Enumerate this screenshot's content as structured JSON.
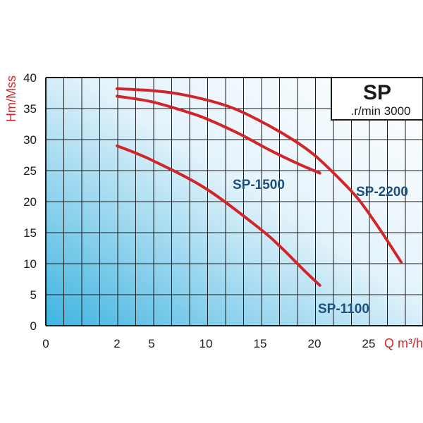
{
  "chart_data": {
    "type": "line",
    "title": "SP",
    "subtitle": ".r/min 3000",
    "xlabel": "Q m³/h",
    "ylabel": "Hm/Mss",
    "xlim": [
      0,
      28
    ],
    "ylim": [
      0,
      40
    ],
    "x_ticks": [
      "0",
      "2",
      "5",
      "10",
      "15",
      "20",
      "25"
    ],
    "y_ticks": [
      "0",
      "5",
      "10",
      "15",
      "20",
      "25",
      "30",
      "35",
      "40"
    ],
    "grid": true,
    "colors": {
      "curve": "#d0262a",
      "series_label": "#1b4f7e",
      "axis_title": "#d0262a",
      "grid": "#1a1a1a",
      "gradient_start": "#3fb4e0",
      "gradient_end": "#ffffff"
    },
    "series": [
      {
        "name": "SP-1100",
        "x": [
          2,
          5,
          10,
          15,
          17,
          19,
          20.5
        ],
        "y": [
          29,
          26.7,
          22.1,
          15.6,
          12.5,
          9,
          6.5
        ]
      },
      {
        "name": "SP-1500",
        "x": [
          2,
          5,
          8,
          10,
          13,
          16,
          18.5,
          20.5
        ],
        "y": [
          37,
          36.1,
          34.6,
          33.4,
          31,
          28.2,
          26.1,
          24.6
        ]
      },
      {
        "name": "SP-2200",
        "x": [
          2,
          5,
          8,
          12,
          15,
          18,
          20,
          22,
          24,
          26,
          28
        ],
        "y": [
          38.2,
          37.9,
          37.2,
          35.4,
          33,
          30,
          27.5,
          24.2,
          20.5,
          15.6,
          10.2
        ]
      }
    ]
  }
}
